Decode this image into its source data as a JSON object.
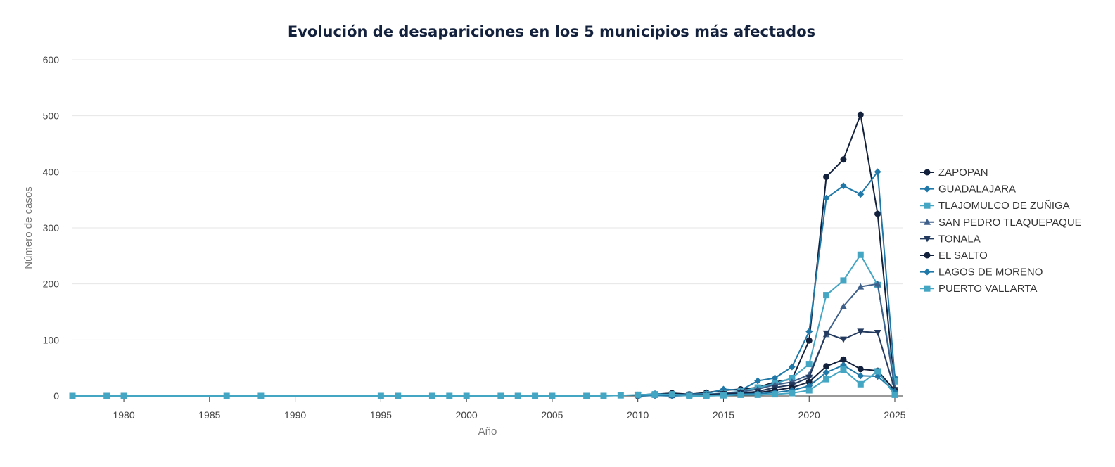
{
  "chart_data": {
    "type": "line",
    "title": "Evolución de desapariciones en los 5 municipios más afectados",
    "xlabel": "Año",
    "ylabel": "Número de casos",
    "xlim": [
      1977,
      2025
    ],
    "ylim": [
      0,
      600
    ],
    "x_ticks": [
      1980,
      1985,
      1990,
      1995,
      2000,
      2005,
      2010,
      2015,
      2020,
      2025
    ],
    "y_ticks": [
      0,
      100,
      200,
      300,
      400,
      500,
      600
    ],
    "grid": "horizontal",
    "legend": "right",
    "series": [
      {
        "name": "ZAPOPAN",
        "color": "#14213d",
        "marker": "circle",
        "points": [
          [
            2010,
            2
          ],
          [
            2011,
            3
          ],
          [
            2012,
            5
          ],
          [
            2013,
            3
          ],
          [
            2014,
            6
          ],
          [
            2015,
            10
          ],
          [
            2016,
            12
          ],
          [
            2017,
            15
          ],
          [
            2018,
            25
          ],
          [
            2019,
            30
          ],
          [
            2020,
            99
          ],
          [
            2021,
            391
          ],
          [
            2022,
            422
          ],
          [
            2023,
            502
          ],
          [
            2024,
            325
          ],
          [
            2025,
            10
          ]
        ]
      },
      {
        "name": "GUADALAJARA",
        "color": "#1f78a8",
        "marker": "diamond",
        "points": [
          [
            2010,
            1
          ],
          [
            2011,
            4
          ],
          [
            2012,
            2
          ],
          [
            2013,
            3
          ],
          [
            2014,
            4
          ],
          [
            2015,
            12
          ],
          [
            2016,
            10
          ],
          [
            2017,
            27
          ],
          [
            2018,
            32
          ],
          [
            2019,
            52
          ],
          [
            2020,
            115
          ],
          [
            2021,
            353
          ],
          [
            2022,
            375
          ],
          [
            2023,
            360
          ],
          [
            2024,
            400
          ],
          [
            2025,
            33
          ]
        ]
      },
      {
        "name": "TLAJOMULCO DE ZUÑIGA",
        "color": "#45a6c4",
        "marker": "square",
        "points": [
          [
            2010,
            2
          ],
          [
            2011,
            3
          ],
          [
            2012,
            2
          ],
          [
            2013,
            2
          ],
          [
            2014,
            3
          ],
          [
            2015,
            5
          ],
          [
            2016,
            8
          ],
          [
            2017,
            15
          ],
          [
            2018,
            22
          ],
          [
            2019,
            32
          ],
          [
            2020,
            57
          ],
          [
            2021,
            180
          ],
          [
            2022,
            206
          ],
          [
            2023,
            252
          ],
          [
            2024,
            198
          ],
          [
            2025,
            26
          ]
        ]
      },
      {
        "name": "SAN PEDRO TLAQUEPAQUE",
        "color": "#3e5f8a",
        "marker": "triangle-up",
        "points": [
          [
            2010,
            1
          ],
          [
            2011,
            2
          ],
          [
            2012,
            1
          ],
          [
            2013,
            2
          ],
          [
            2014,
            2
          ],
          [
            2015,
            5
          ],
          [
            2016,
            7
          ],
          [
            2017,
            12
          ],
          [
            2018,
            20
          ],
          [
            2019,
            25
          ],
          [
            2020,
            38
          ],
          [
            2021,
            110
          ],
          [
            2022,
            160
          ],
          [
            2023,
            195
          ],
          [
            2024,
            200
          ],
          [
            2025,
            15
          ]
        ]
      },
      {
        "name": "TONALA",
        "color": "#233a5e",
        "marker": "triangle-down",
        "points": [
          [
            2010,
            1
          ],
          [
            2011,
            1
          ],
          [
            2012,
            2
          ],
          [
            2013,
            1
          ],
          [
            2014,
            2
          ],
          [
            2015,
            4
          ],
          [
            2016,
            5
          ],
          [
            2017,
            8
          ],
          [
            2018,
            15
          ],
          [
            2019,
            20
          ],
          [
            2020,
            33
          ],
          [
            2021,
            112
          ],
          [
            2022,
            101
          ],
          [
            2023,
            115
          ],
          [
            2024,
            113
          ],
          [
            2025,
            11
          ]
        ]
      },
      {
        "name": "EL SALTO",
        "color": "#14213d",
        "marker": "circle",
        "points": [
          [
            2010,
            0
          ],
          [
            2011,
            1
          ],
          [
            2012,
            1
          ],
          [
            2013,
            1
          ],
          [
            2014,
            2
          ],
          [
            2015,
            3
          ],
          [
            2016,
            4
          ],
          [
            2017,
            6
          ],
          [
            2018,
            10
          ],
          [
            2019,
            15
          ],
          [
            2020,
            25
          ],
          [
            2021,
            53
          ],
          [
            2022,
            65
          ],
          [
            2023,
            48
          ],
          [
            2024,
            45
          ],
          [
            2025,
            10
          ]
        ]
      },
      {
        "name": "LAGOS DE MORENO",
        "color": "#1f78a8",
        "marker": "diamond",
        "points": [
          [
            2010,
            0
          ],
          [
            2011,
            1
          ],
          [
            2012,
            0
          ],
          [
            2013,
            1
          ],
          [
            2014,
            1
          ],
          [
            2015,
            2
          ],
          [
            2016,
            3
          ],
          [
            2017,
            4
          ],
          [
            2018,
            6
          ],
          [
            2019,
            10
          ],
          [
            2020,
            18
          ],
          [
            2021,
            42
          ],
          [
            2022,
            55
          ],
          [
            2023,
            36
          ],
          [
            2024,
            35
          ],
          [
            2025,
            8
          ]
        ]
      },
      {
        "name": "PUERTO VALLARTA",
        "color": "#45a6c4",
        "marker": "square",
        "points": [
          [
            1977,
            0
          ],
          [
            1979,
            0
          ],
          [
            1980,
            0
          ],
          [
            1986,
            0
          ],
          [
            1988,
            0
          ],
          [
            1995,
            0
          ],
          [
            1996,
            0
          ],
          [
            1998,
            0
          ],
          [
            1999,
            0
          ],
          [
            2000,
            0
          ],
          [
            2002,
            0
          ],
          [
            2003,
            0
          ],
          [
            2004,
            0
          ],
          [
            2005,
            0
          ],
          [
            2007,
            0
          ],
          [
            2008,
            0
          ],
          [
            2009,
            1
          ],
          [
            2010,
            2
          ],
          [
            2011,
            2
          ],
          [
            2012,
            3
          ],
          [
            2013,
            0
          ],
          [
            2014,
            0
          ],
          [
            2015,
            1
          ],
          [
            2016,
            2
          ],
          [
            2017,
            2
          ],
          [
            2018,
            3
          ],
          [
            2019,
            5
          ],
          [
            2020,
            10
          ],
          [
            2021,
            30
          ],
          [
            2022,
            47
          ],
          [
            2023,
            21
          ],
          [
            2024,
            44
          ],
          [
            2025,
            2
          ]
        ]
      }
    ]
  }
}
